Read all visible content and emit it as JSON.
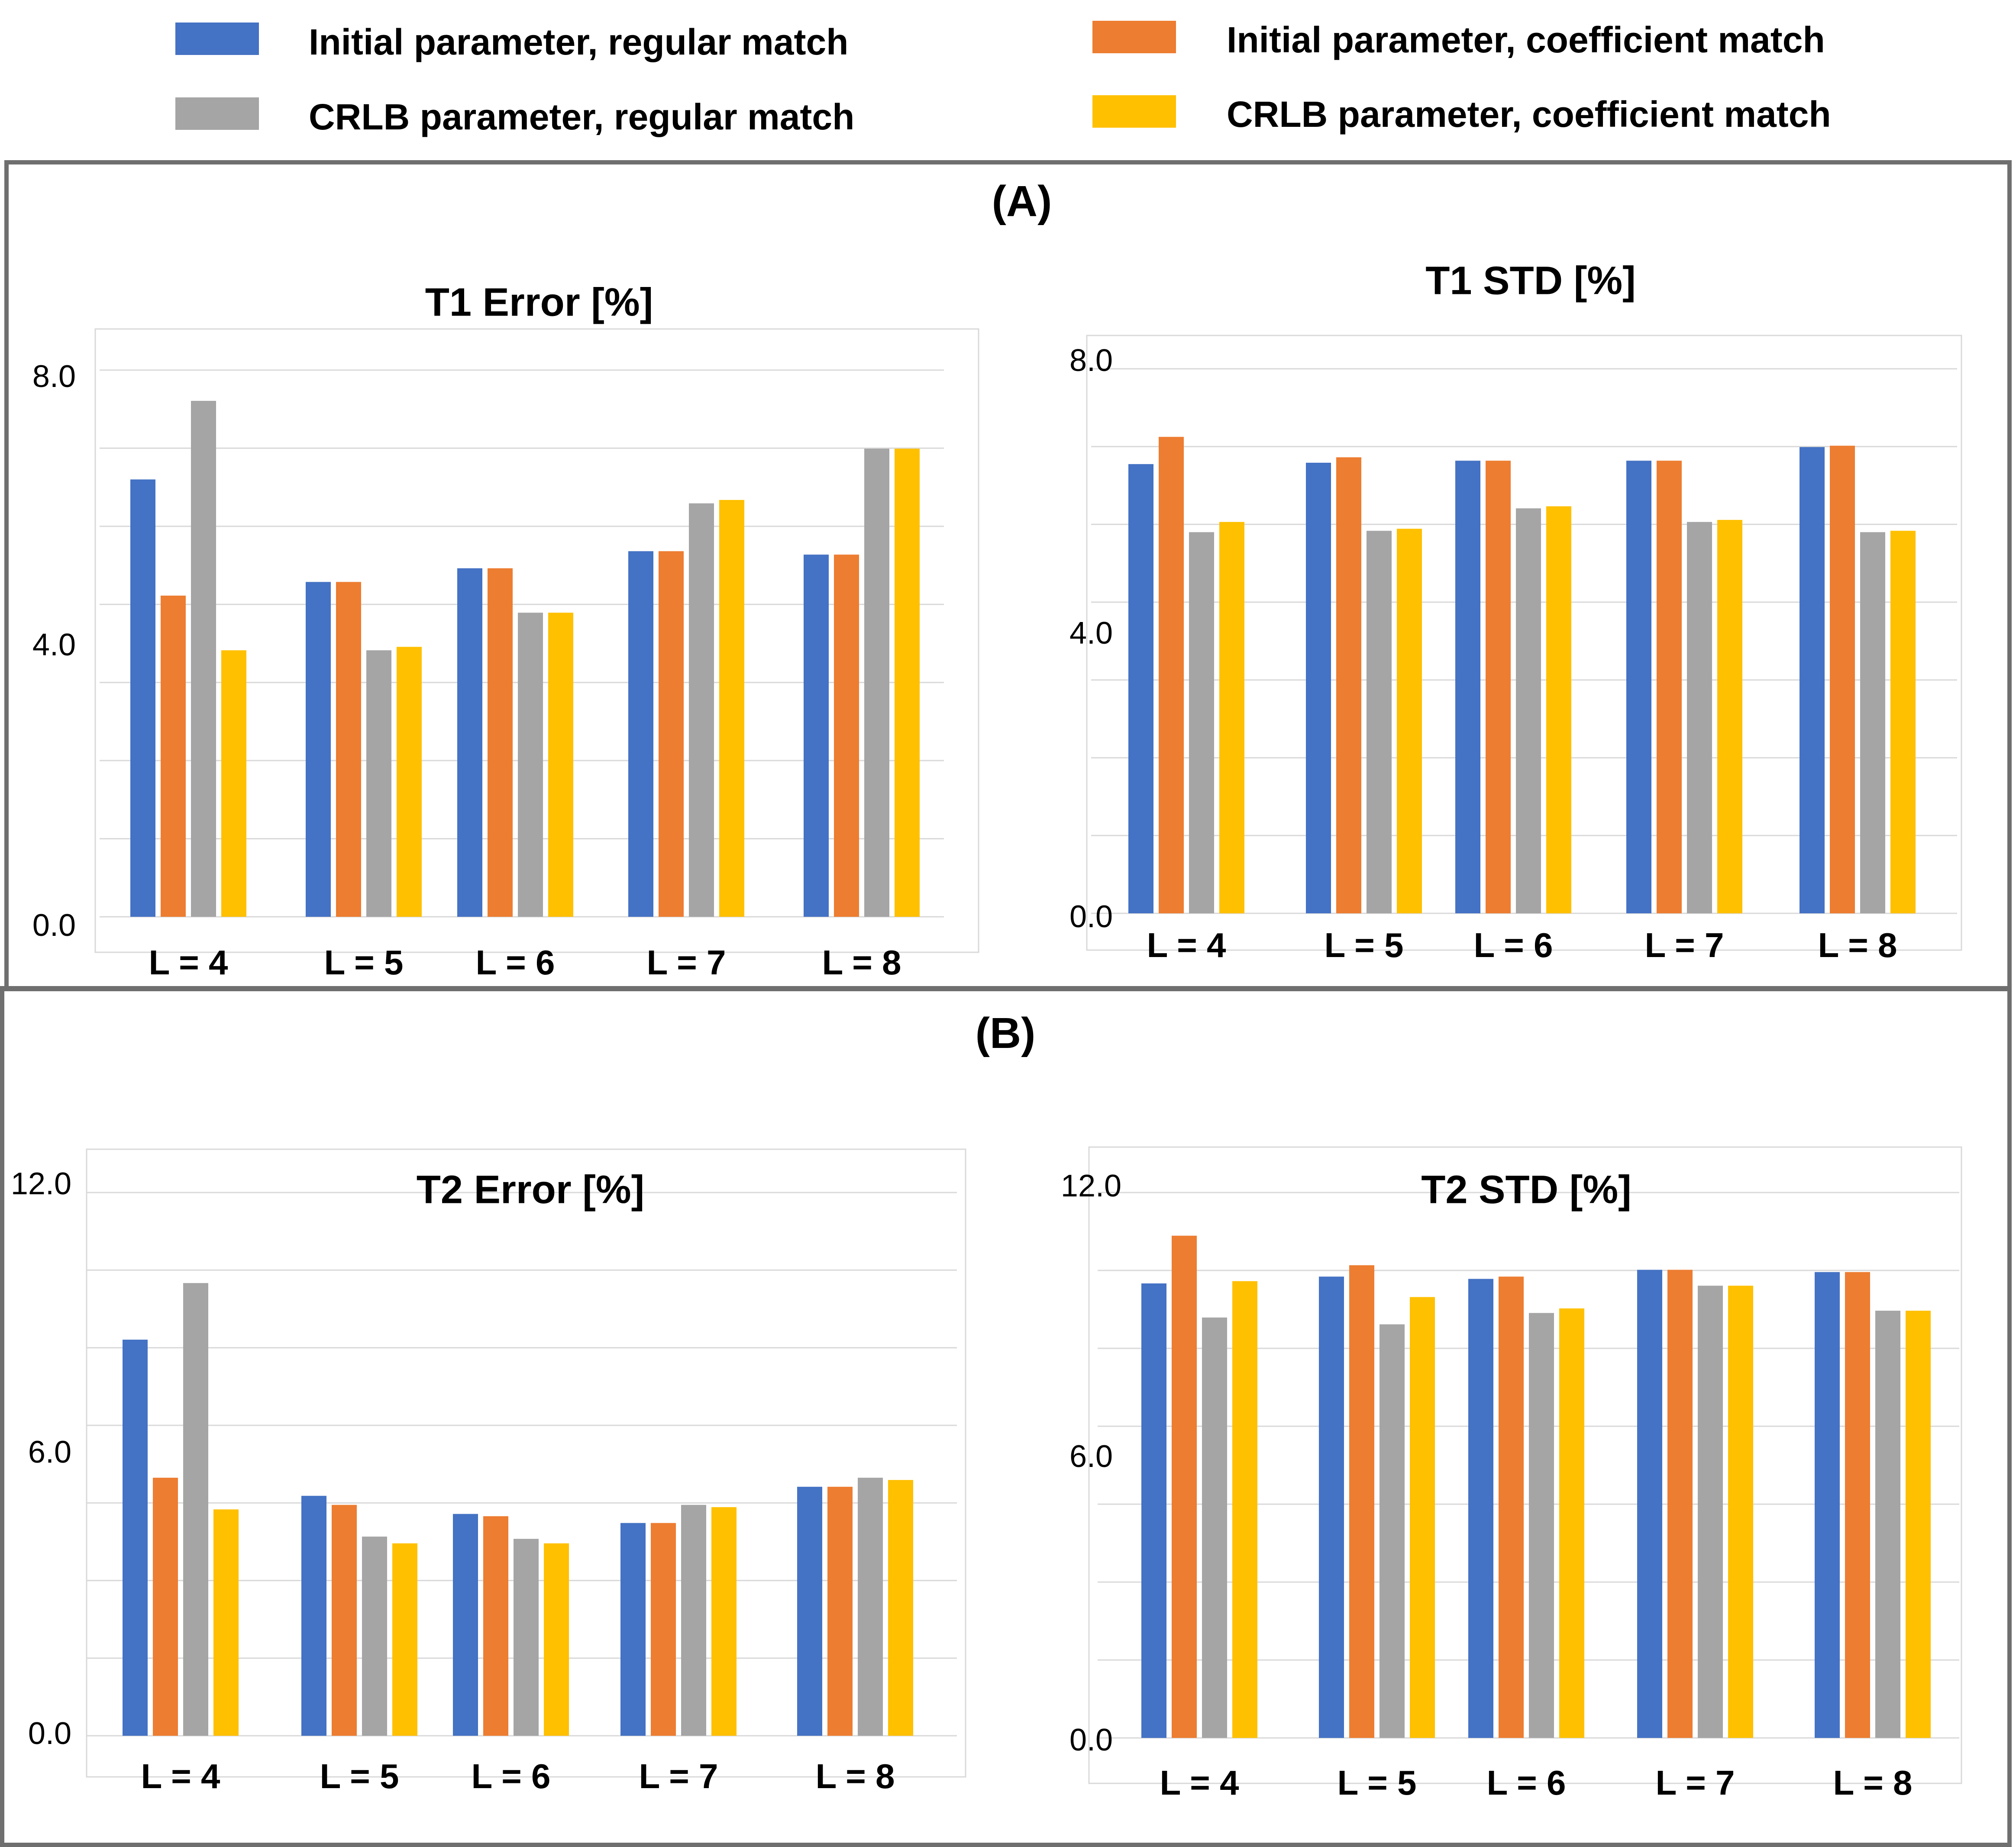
{
  "legend": [
    {
      "label": "Initial parameter, regular match",
      "color": "#4472C4"
    },
    {
      "label": "Initial parameter, coefficient match",
      "color": "#ED7D31"
    },
    {
      "label": "CRLB parameter, regular match",
      "color": "#A5A5A5"
    },
    {
      "label": "CRLB parameter, coefficient match",
      "color": "#FFC000"
    }
  ],
  "panels": {
    "a": {
      "tag": "(A)"
    },
    "b": {
      "tag": "(B)"
    }
  },
  "chart_data": [
    {
      "type": "bar",
      "title": "T1 Error [%]",
      "categories": [
        "L = 4",
        "L = 5",
        "L = 6",
        "L = 7",
        "L = 8"
      ],
      "ylim": [
        0,
        8
      ],
      "yticks": [
        "0.0",
        "4.0",
        "8.0"
      ],
      "xlabel": "",
      "ylabel": "",
      "series": [
        {
          "name": "Initial parameter, regular match",
          "values": [
            6.4,
            4.9,
            5.1,
            5.35,
            5.3
          ]
        },
        {
          "name": "Initial parameter, coefficient match",
          "values": [
            4.7,
            4.9,
            5.1,
            5.35,
            5.3
          ]
        },
        {
          "name": "CRLB parameter, regular match",
          "values": [
            7.55,
            3.9,
            4.45,
            6.05,
            6.85
          ]
        },
        {
          "name": "CRLB parameter, coefficient match",
          "values": [
            3.9,
            3.95,
            4.45,
            6.1,
            6.85
          ]
        }
      ]
    },
    {
      "type": "bar",
      "title": "T1 STD [%]",
      "categories": [
        "L = 4",
        "L = 5",
        "L = 6",
        "L = 7",
        "L = 8"
      ],
      "ylim": [
        0,
        8
      ],
      "yticks": [
        "0.0",
        "4.0",
        "8.0"
      ],
      "xlabel": "",
      "ylabel": "",
      "series": [
        {
          "name": "Initial parameter, regular match",
          "values": [
            6.6,
            6.62,
            6.65,
            6.65,
            6.85
          ]
        },
        {
          "name": "Initial parameter, coefficient match",
          "values": [
            7.0,
            6.7,
            6.65,
            6.65,
            6.87
          ]
        },
        {
          "name": "CRLB parameter, regular match",
          "values": [
            5.6,
            5.62,
            5.95,
            5.75,
            5.6
          ]
        },
        {
          "name": "CRLB parameter, coefficient match",
          "values": [
            5.75,
            5.65,
            5.98,
            5.78,
            5.62
          ]
        }
      ]
    },
    {
      "type": "bar",
      "title": "T2 Error [%]",
      "categories": [
        "L = 4",
        "L = 5",
        "L = 6",
        "L = 7",
        "L = 8"
      ],
      "ylim": [
        0,
        12
      ],
      "yticks": [
        "0.0",
        "6.0",
        "12.0"
      ],
      "xlabel": "",
      "ylabel": "",
      "series": [
        {
          "name": "Initial parameter, regular match",
          "values": [
            8.75,
            5.3,
            4.9,
            4.7,
            5.5
          ]
        },
        {
          "name": "Initial parameter, coefficient match",
          "values": [
            5.7,
            5.1,
            4.85,
            4.7,
            5.5
          ]
        },
        {
          "name": "CRLB parameter, regular match",
          "values": [
            10.0,
            4.4,
            4.35,
            5.1,
            5.7
          ]
        },
        {
          "name": "CRLB parameter, coefficient match",
          "values": [
            5.0,
            4.25,
            4.25,
            5.05,
            5.65
          ]
        }
      ]
    },
    {
      "type": "bar",
      "title": "T2 STD [%]",
      "categories": [
        "L = 4",
        "L = 5",
        "L = 6",
        "L = 7",
        "L = 8"
      ],
      "ylim": [
        0,
        12
      ],
      "yticks": [
        "0.0",
        "6.0",
        "12.0"
      ],
      "xlabel": "",
      "ylabel": "",
      "series": [
        {
          "name": "Initial parameter, regular match",
          "values": [
            10.0,
            10.15,
            10.1,
            10.3,
            10.25
          ]
        },
        {
          "name": "Initial parameter, coefficient match",
          "values": [
            11.05,
            10.4,
            10.15,
            10.3,
            10.25
          ]
        },
        {
          "name": "CRLB parameter, regular match",
          "values": [
            9.25,
            9.1,
            9.35,
            9.95,
            9.4
          ]
        },
        {
          "name": "CRLB parameter, coefficient match",
          "values": [
            10.05,
            9.7,
            9.45,
            9.95,
            9.4
          ]
        }
      ]
    }
  ]
}
